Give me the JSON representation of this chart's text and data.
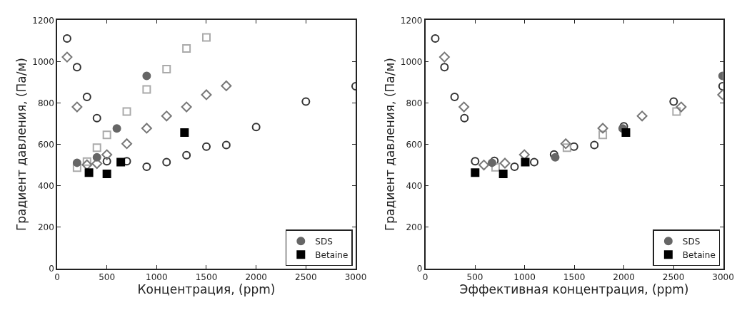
{
  "chart_data": [
    {
      "type": "scatter",
      "xlabel": "Концентрация, (ppm)",
      "ylabel": "Градиент давления, (Па/м)",
      "xlim": [
        0,
        3000
      ],
      "xticks": [
        0,
        500,
        1000,
        1500,
        2000,
        2500,
        3000
      ],
      "ylim": [
        0,
        1200
      ],
      "yticks": [
        0,
        200,
        400,
        600,
        800,
        1000,
        1200
      ],
      "legend": "bottom right",
      "series": [
        {
          "color": "#333333",
          "marker": "circle-open",
          "x": [
            100,
            200,
            300,
            400,
            500,
            700,
            900,
            1100,
            1300,
            1500,
            1700,
            2000,
            2500,
            3000
          ],
          "values": [
            1112,
            973,
            829,
            727,
            518,
            518,
            492,
            514,
            548,
            589,
            597,
            684,
            807,
            881
          ]
        },
        {
          "color": "#aaaaaa",
          "marker": "square-open",
          "x": [
            200,
            300,
            400,
            500,
            700,
            900,
            1100,
            1300,
            1500
          ],
          "values": [
            487,
            517,
            584,
            646,
            759,
            866,
            964,
            1064,
            1117
          ]
        },
        {
          "color": "#777777",
          "marker": "diamond-open",
          "x": [
            100,
            200,
            300,
            400,
            500,
            700,
            900,
            1100,
            1300,
            1500,
            1700
          ],
          "values": [
            1022,
            781,
            501,
            507,
            550,
            603,
            678,
            737,
            781,
            840,
            883
          ]
        },
        {
          "name": "SDS",
          "color": "#666666",
          "marker": "circle",
          "x": [
            200,
            400,
            600,
            900
          ],
          "values": [
            511,
            537,
            677,
            931
          ]
        },
        {
          "name": "Betaine",
          "color": "#000000",
          "marker": "square",
          "x": [
            320,
            500,
            640,
            1280
          ],
          "values": [
            463,
            457,
            514,
            657
          ]
        }
      ]
    },
    {
      "type": "scatter",
      "xlabel": "Эффективная концентрация, (ppm)",
      "ylabel": "Градиент давления, (Па/м)",
      "xlim": [
        0,
        3000
      ],
      "xticks": [
        0,
        500,
        1000,
        1500,
        2000,
        2500,
        3000
      ],
      "ylim": [
        0,
        1200
      ],
      "yticks": [
        0,
        200,
        400,
        600,
        800,
        1000,
        1200
      ],
      "legend": "bottom right",
      "series": [
        {
          "color": "#333333",
          "marker": "circle-open",
          "x": [
            100,
            193,
            295,
            394,
            502,
            696,
            899,
            1097,
            1297,
            1498,
            1703,
            2000,
            2502,
            2995
          ],
          "values": [
            1112,
            973,
            829,
            727,
            518,
            520,
            492,
            514,
            551,
            589,
            597,
            687,
            807,
            881
          ]
        },
        {
          "color": "#aaaaaa",
          "marker": "square-open",
          "x": [
            708,
            1427,
            1788,
            2531
          ],
          "values": [
            489,
            584,
            646,
            759
          ]
        },
        {
          "color": "#777777",
          "marker": "diamond-open",
          "x": [
            193,
            389,
            590,
            802,
            998,
            1415,
            1788,
            2184,
            2578,
            2995
          ],
          "values": [
            1022,
            781,
            500,
            509,
            550,
            603,
            678,
            737,
            781,
            840
          ]
        },
        {
          "name": "SDS",
          "color": "#666666",
          "marker": "circle",
          "x": [
            672,
            1309,
            1988,
            2995
          ],
          "values": [
            511,
            537,
            677,
            931
          ]
        },
        {
          "name": "Betaine",
          "color": "#000000",
          "marker": "square",
          "x": [
            502,
            785,
            1007,
            2021
          ],
          "values": [
            463,
            457,
            514,
            657
          ]
        }
      ]
    }
  ]
}
